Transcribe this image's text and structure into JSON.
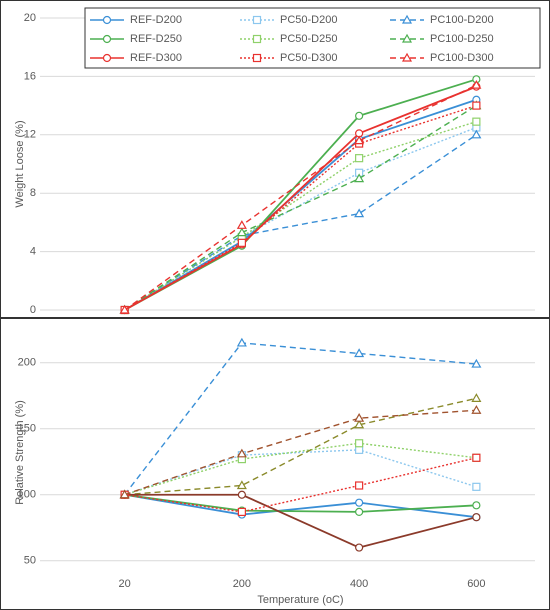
{
  "chart_data": [
    {
      "type": "line",
      "y_label": "Weight Loose (%)",
      "categories": [
        null,
        null,
        null,
        null
      ],
      "ylim": [
        0,
        20
      ],
      "yticks": [
        0,
        4,
        8,
        12,
        16,
        20
      ],
      "grid": true,
      "legend": "upper center",
      "series": [
        {
          "name": "REF-D200",
          "color": "#3a8fd6",
          "dash": "solid",
          "marker": "circle",
          "values": [
            0,
            4.7,
            11.7,
            14.4
          ]
        },
        {
          "name": "PC50-D200",
          "color": "#8cc7ee",
          "dash": "dotted",
          "marker": "square",
          "values": [
            0,
            5.0,
            9.4,
            12.5
          ]
        },
        {
          "name": "PC100-D200",
          "color": "#3a8fd6",
          "dash": "dashed",
          "marker": "triangle",
          "values": [
            0,
            5.1,
            6.6,
            12.0
          ]
        },
        {
          "name": "REF-D250",
          "color": "#4caf50",
          "dash": "solid",
          "marker": "circle",
          "values": [
            0,
            4.4,
            13.3,
            15.8
          ]
        },
        {
          "name": "PC50-D250",
          "color": "#8fd16a",
          "dash": "dotted",
          "marker": "square",
          "values": [
            0,
            5.0,
            10.4,
            12.9
          ]
        },
        {
          "name": "PC100-D250",
          "color": "#4caf50",
          "dash": "dashed",
          "marker": "triangle",
          "values": [
            0,
            5.3,
            9.0,
            14.0
          ]
        },
        {
          "name": "REF-D300",
          "color": "#e8322f",
          "dash": "solid",
          "marker": "circle",
          "values": [
            0,
            4.5,
            12.1,
            15.3
          ]
        },
        {
          "name": "PC50-D300",
          "color": "#e8322f",
          "dash": "dotted",
          "marker": "square",
          "values": [
            0,
            4.6,
            11.4,
            14.0
          ]
        },
        {
          "name": "PC100-D300",
          "color": "#e8322f",
          "dash": "dashed",
          "marker": "triangle",
          "values": [
            0,
            5.8,
            11.6,
            15.4
          ]
        }
      ]
    },
    {
      "type": "line",
      "y_label": "Relative Strength (%)",
      "x_label": "Temperature (oC)",
      "categories": [
        "20",
        "200",
        "400",
        "600"
      ],
      "ylim": [
        43,
        221
      ],
      "yticks": [
        50,
        100,
        150,
        200
      ],
      "grid": true,
      "series": [
        {
          "color": "#3a8fd6",
          "dash": "solid",
          "marker": "circle",
          "values": [
            100,
            85,
            94,
            83
          ]
        },
        {
          "color": "#8cc7ee",
          "dash": "dotted",
          "marker": "square",
          "values": [
            100,
            130,
            134,
            106
          ]
        },
        {
          "color": "#3a8fd6",
          "dash": "dashed",
          "marker": "triangle",
          "values": [
            100,
            215,
            207,
            199
          ]
        },
        {
          "color": "#4caf50",
          "dash": "solid",
          "marker": "circle",
          "values": [
            100,
            88,
            87,
            92
          ]
        },
        {
          "color": "#8fd16a",
          "dash": "dotted",
          "marker": "square",
          "values": [
            100,
            127,
            139,
            128
          ]
        },
        {
          "color": "#8a8a2a",
          "dash": "dashed",
          "marker": "triangle",
          "values": [
            100,
            107,
            153,
            173
          ]
        },
        {
          "color": "#8b3a2a",
          "dash": "solid",
          "marker": "circle",
          "values": [
            100,
            100,
            60,
            83
          ]
        },
        {
          "color": "#e8322f",
          "dash": "dotted",
          "marker": "square",
          "values": [
            100,
            87,
            107,
            128
          ]
        },
        {
          "color": "#a0522d",
          "dash": "dashed",
          "marker": "triangle",
          "values": [
            100,
            131,
            158,
            164
          ]
        }
      ]
    }
  ]
}
